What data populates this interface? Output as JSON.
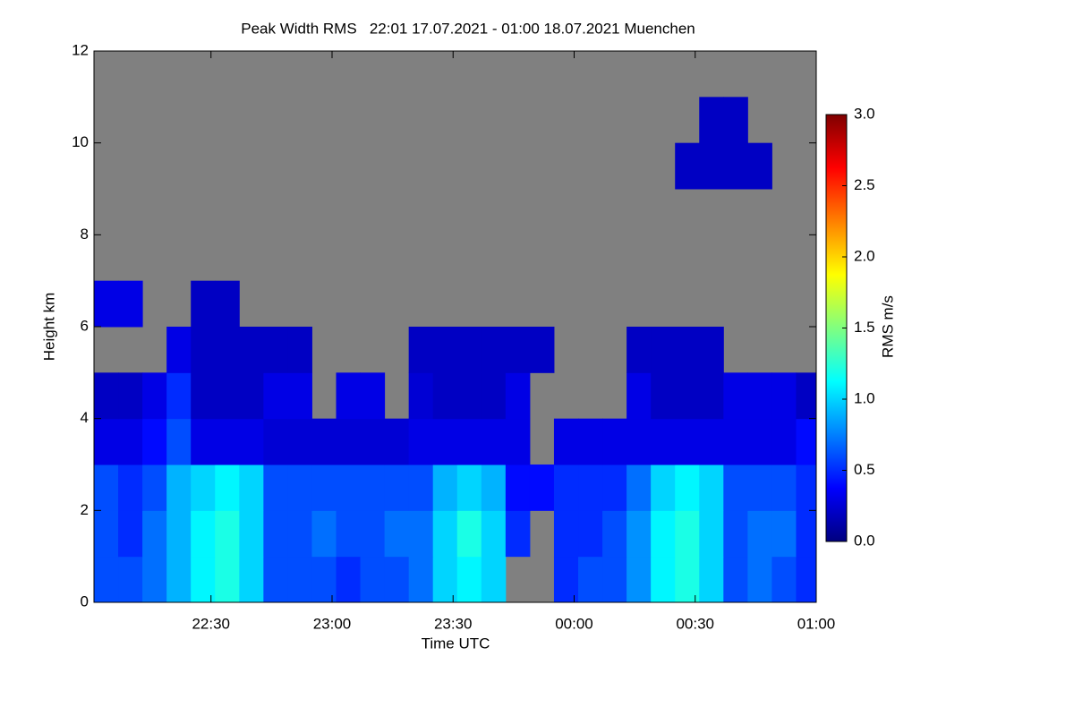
{
  "chart_data": {
    "type": "heatmap",
    "title": "Peak Width RMS   22:01 17.07.2021 - 01:00 18.07.2021 Muenchen",
    "x_label": "Time UTC",
    "y_label": "Height km",
    "colorbar_label": "RMS m/s",
    "xlim": [
      1,
      180
    ],
    "xticks": [
      {
        "value": 30,
        "label": "22:30"
      },
      {
        "value": 60,
        "label": "23:00"
      },
      {
        "value": 90,
        "label": "23:30"
      },
      {
        "value": 120,
        "label": "00:00"
      },
      {
        "value": 150,
        "label": "00:30"
      },
      {
        "value": 180,
        "label": "01:00"
      }
    ],
    "ylim": [
      0,
      12
    ],
    "yticks": [
      0,
      2,
      4,
      6,
      8,
      10,
      12
    ],
    "zlim": [
      0,
      3
    ],
    "zticks": [
      {
        "value": 0,
        "label": "0.0"
      },
      {
        "value": 0.5,
        "label": "0.5"
      },
      {
        "value": 1,
        "label": "1.0"
      },
      {
        "value": 1.5,
        "label": "1.5"
      },
      {
        "value": 2,
        "label": "2.0"
      },
      {
        "value": 2.5,
        "label": "2.5"
      },
      {
        "value": 3,
        "label": "3.0"
      }
    ],
    "colormap": [
      "#00007f",
      "#0000ff",
      "#0080ff",
      "#00ffff",
      "#80ff80",
      "#ffff00",
      "#ff8000",
      "#ff0000",
      "#7f0000"
    ],
    "missing_color": "#808080",
    "x": [
      4,
      10,
      16,
      22,
      28,
      34,
      40,
      46,
      52,
      58,
      64,
      70,
      76,
      82,
      88,
      94,
      100,
      106,
      112,
      118,
      124,
      130,
      136,
      142,
      148,
      154,
      160,
      166,
      172,
      178
    ],
    "y": [
      0.5,
      1.5,
      2.5,
      3.5,
      4.5,
      5.5,
      6.5,
      7.5,
      8.5,
      9.5,
      10.5,
      11.5
    ],
    "z": [
      [
        0.6,
        0.6,
        0.7,
        0.9,
        1.1,
        1.2,
        1.0,
        0.6,
        0.6,
        0.6,
        0.5,
        0.6,
        0.6,
        0.7,
        1.0,
        1.1,
        1.0,
        null,
        null,
        0.5,
        0.6,
        0.6,
        0.8,
        1.1,
        1.2,
        1.0,
        0.6,
        0.7,
        0.6,
        0.5
      ],
      [
        0.6,
        0.5,
        0.7,
        0.9,
        1.1,
        1.2,
        1.0,
        0.6,
        0.6,
        0.7,
        0.6,
        0.6,
        0.7,
        0.7,
        1.0,
        1.2,
        1.0,
        0.5,
        null,
        0.5,
        0.5,
        0.6,
        0.8,
        1.1,
        1.2,
        1.0,
        0.6,
        0.7,
        0.7,
        0.5
      ],
      [
        0.6,
        0.5,
        0.6,
        0.9,
        1.0,
        1.1,
        1.0,
        0.6,
        0.6,
        0.6,
        0.6,
        0.6,
        0.6,
        0.6,
        0.9,
        1.0,
        0.9,
        0.4,
        0.4,
        0.5,
        0.5,
        0.5,
        0.7,
        1.0,
        1.1,
        1.0,
        0.6,
        0.6,
        0.6,
        0.5
      ],
      [
        0.3,
        0.3,
        0.4,
        0.6,
        0.3,
        0.3,
        0.3,
        0.25,
        0.25,
        0.25,
        0.25,
        0.25,
        0.25,
        0.3,
        0.3,
        0.3,
        0.3,
        0.3,
        null,
        0.3,
        0.3,
        0.3,
        0.3,
        0.3,
        0.3,
        0.3,
        0.3,
        0.3,
        0.3,
        0.4
      ],
      [
        0.2,
        0.2,
        0.3,
        0.5,
        0.2,
        0.2,
        0.2,
        0.3,
        0.3,
        null,
        0.3,
        0.3,
        null,
        0.25,
        0.2,
        0.2,
        0.2,
        0.3,
        null,
        null,
        null,
        null,
        0.3,
        0.2,
        0.2,
        0.2,
        0.3,
        0.3,
        0.3,
        0.2
      ],
      [
        null,
        null,
        null,
        0.3,
        0.2,
        0.2,
        0.2,
        0.2,
        0.2,
        null,
        null,
        null,
        null,
        0.2,
        0.2,
        0.2,
        0.2,
        0.2,
        0.2,
        null,
        null,
        null,
        0.2,
        0.2,
        0.2,
        0.2,
        null,
        null,
        null,
        null
      ],
      [
        0.3,
        0.3,
        null,
        null,
        0.2,
        0.2,
        null,
        null,
        null,
        null,
        null,
        null,
        null,
        null,
        null,
        null,
        null,
        null,
        null,
        null,
        null,
        null,
        null,
        null,
        null,
        null,
        null,
        null,
        null,
        null
      ],
      [
        null,
        null,
        null,
        null,
        null,
        null,
        null,
        null,
        null,
        null,
        null,
        null,
        null,
        null,
        null,
        null,
        null,
        null,
        null,
        null,
        null,
        null,
        null,
        null,
        null,
        null,
        null,
        null,
        null,
        null
      ],
      [
        null,
        null,
        null,
        null,
        null,
        null,
        null,
        null,
        null,
        null,
        null,
        null,
        null,
        null,
        null,
        null,
        null,
        null,
        null,
        null,
        null,
        null,
        null,
        null,
        null,
        null,
        null,
        null,
        null,
        null
      ],
      [
        null,
        null,
        null,
        null,
        null,
        null,
        null,
        null,
        null,
        null,
        null,
        null,
        null,
        null,
        null,
        null,
        null,
        null,
        null,
        null,
        null,
        null,
        null,
        null,
        0.2,
        0.2,
        0.2,
        0.2,
        null,
        null
      ],
      [
        null,
        null,
        null,
        null,
        null,
        null,
        null,
        null,
        null,
        null,
        null,
        null,
        null,
        null,
        null,
        null,
        null,
        null,
        null,
        null,
        null,
        null,
        null,
        null,
        null,
        0.2,
        0.2,
        null,
        null,
        null
      ],
      [
        null,
        null,
        null,
        null,
        null,
        null,
        null,
        null,
        null,
        null,
        null,
        null,
        null,
        null,
        null,
        null,
        null,
        null,
        null,
        null,
        null,
        null,
        null,
        null,
        null,
        null,
        null,
        null,
        null,
        null
      ]
    ]
  }
}
